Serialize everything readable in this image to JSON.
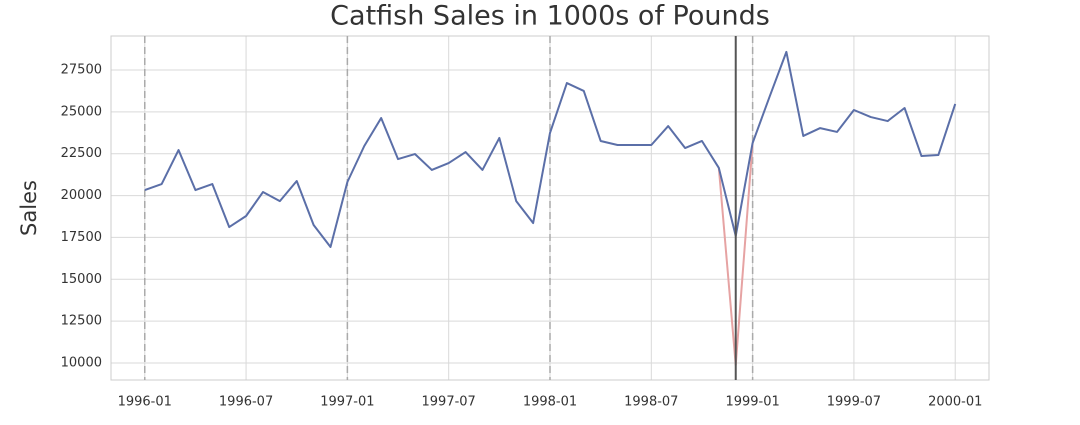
{
  "chart_data": {
    "type": "line",
    "title": "Catfish Sales in 1000s of Pounds",
    "y_label": "Sales",
    "x": [
      "1996-01",
      "1996-02",
      "1996-03",
      "1996-04",
      "1996-05",
      "1996-06",
      "1996-07",
      "1996-08",
      "1996-09",
      "1996-10",
      "1996-11",
      "1996-12",
      "1997-01",
      "1997-02",
      "1997-03",
      "1997-04",
      "1997-05",
      "1997-06",
      "1997-07",
      "1997-08",
      "1997-09",
      "1997-10",
      "1997-11",
      "1997-12",
      "1998-01",
      "1998-02",
      "1998-03",
      "1998-04",
      "1998-05",
      "1998-06",
      "1998-07",
      "1998-08",
      "1998-09",
      "1998-10",
      "1998-11",
      "1998-12",
      "1999-01",
      "1999-02",
      "1999-03",
      "1999-04",
      "1999-05",
      "1999-06",
      "1999-07",
      "1999-08",
      "1999-09",
      "1999-10",
      "1999-11",
      "1999-12",
      "2000-01"
    ],
    "series": [
      {
        "color": "#e6a3a3",
        "values": [
          null,
          null,
          null,
          null,
          null,
          null,
          null,
          null,
          null,
          null,
          null,
          null,
          null,
          null,
          null,
          null,
          null,
          null,
          null,
          null,
          null,
          null,
          null,
          null,
          null,
          null,
          null,
          null,
          null,
          null,
          null,
          null,
          null,
          null,
          21650,
          9880,
          23140,
          null,
          null,
          null,
          null,
          null,
          null,
          null,
          null,
          null,
          null,
          null,
          null
        ]
      },
      {
        "color": "#5b6fa8",
        "values": [
          20330,
          20690,
          22720,
          20330,
          20690,
          18120,
          18780,
          20210,
          19670,
          20870,
          18240,
          16930,
          20810,
          22960,
          24630,
          22180,
          22480,
          21530,
          21940,
          22600,
          21530,
          23440,
          19670,
          18360,
          23740,
          26720,
          26250,
          23260,
          23020,
          23020,
          23020,
          24150,
          22840,
          23260,
          21650,
          17590,
          23140,
          25890,
          28580,
          23560,
          24030,
          23800,
          25110,
          24690,
          24450,
          25230,
          22360,
          22420,
          25470
        ]
      }
    ],
    "dashed_vlines": [
      "1996-01",
      "1997-01",
      "1998-01",
      "1999-01"
    ],
    "dashed_vline_color": "#aaaaaa",
    "solid_vline": "1998-12",
    "solid_vline_color": "#555555",
    "xlim": [
      "1995-11",
      "2000-03"
    ],
    "xticks": [
      "1996-01",
      "1996-07",
      "1997-01",
      "1997-07",
      "1998-01",
      "1998-07",
      "1999-01",
      "1999-07",
      "2000-01"
    ],
    "ylim": [
      8985,
      29530
    ],
    "yticks": [
      10000,
      12500,
      15000,
      17500,
      20000,
      22500,
      25000,
      27500
    ],
    "grid": true
  }
}
